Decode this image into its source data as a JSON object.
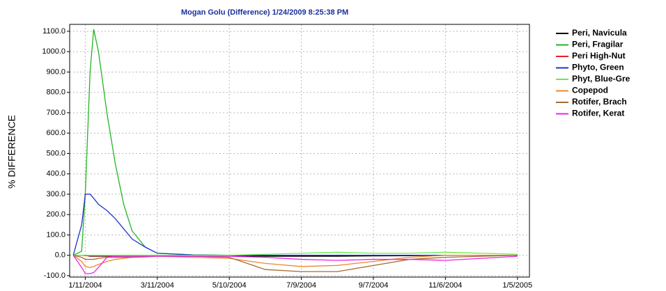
{
  "chart_data": {
    "type": "line",
    "title": "Mogan Golu (Difference)  1/24/2009 8:25:38 PM",
    "y_label": "% DIFFERENCE",
    "x": [
      "1/1/2004",
      "1/8/2004",
      "1/11/2004",
      "1/15/2004",
      "1/18/2004",
      "1/22/2004",
      "1/29/2004",
      "2/5/2004",
      "2/12/2004",
      "2/19/2004",
      "3/1/2004",
      "3/11/2004",
      "4/10/2004",
      "5/10/2004",
      "6/9/2004",
      "7/9/2004",
      "8/8/2004",
      "9/7/2004",
      "10/7/2004",
      "11/6/2004",
      "12/6/2004",
      "1/5/2005"
    ],
    "xlim": [
      "12/29/2003",
      "1/15/2005"
    ],
    "xticks": [
      "1/11/2004",
      "3/11/2004",
      "5/10/2004",
      "7/9/2004",
      "9/7/2004",
      "11/6/2004",
      "1/5/2005"
    ],
    "ylim": [
      -107,
      1134
    ],
    "yticks": [
      {
        "value": -100,
        "label": "-100.0"
      },
      {
        "value": 0,
        "label": "0.0"
      },
      {
        "value": 100,
        "label": "100.0"
      },
      {
        "value": 200,
        "label": "200.0"
      },
      {
        "value": 300,
        "label": "300.0"
      },
      {
        "value": 400,
        "label": "400.0"
      },
      {
        "value": 500,
        "label": "500.0"
      },
      {
        "value": 600,
        "label": "600.0"
      },
      {
        "value": 700,
        "label": "700.0"
      },
      {
        "value": 800,
        "label": "800.0"
      },
      {
        "value": 900,
        "label": "900.0"
      },
      {
        "value": 1000,
        "label": "1000.0"
      },
      {
        "value": 1100,
        "label": "1100.0"
      }
    ],
    "grid": true,
    "legend": "right",
    "series": [
      {
        "name": "Peri, Navicula",
        "color": "#000000",
        "values": [
          0,
          0,
          0,
          -5,
          -5,
          -5,
          -5,
          -5,
          -5,
          -5,
          -3,
          -2,
          -2,
          -3,
          -5,
          -5,
          -5,
          -3,
          -2,
          0,
          0,
          0
        ]
      },
      {
        "name": "Peri, Fragilar",
        "color": "#22b422",
        "values": [
          0,
          20,
          300,
          900,
          1110,
          1000,
          700,
          450,
          250,
          120,
          40,
          10,
          2,
          0,
          0,
          0,
          0,
          0,
          0,
          0,
          0,
          0
        ]
      },
      {
        "name": "Peri High-Nut",
        "color": "#e8202a",
        "values": [
          0,
          0,
          -2,
          -3,
          -3,
          -3,
          -3,
          -3,
          -2,
          -2,
          -2,
          -2,
          0,
          0,
          0,
          0,
          0,
          0,
          0,
          0,
          0,
          0
        ]
      },
      {
        "name": "Phyto, Green",
        "color": "#2233cc",
        "values": [
          0,
          150,
          300,
          300,
          280,
          250,
          220,
          180,
          130,
          80,
          40,
          10,
          2,
          0,
          0,
          0,
          0,
          0,
          0,
          0,
          0,
          0
        ]
      },
      {
        "name": "Phyt, Blue-Gre",
        "color": "#66ee44",
        "values": [
          0,
          0,
          0,
          0,
          0,
          0,
          0,
          0,
          0,
          0,
          0,
          0,
          0,
          0,
          5,
          10,
          15,
          10,
          10,
          15,
          10,
          5
        ]
      },
      {
        "name": "Copepod",
        "color": "#e88a2a",
        "values": [
          0,
          -30,
          -55,
          -60,
          -55,
          -45,
          -30,
          -20,
          -15,
          -10,
          -5,
          -5,
          -10,
          -15,
          -40,
          -55,
          -50,
          -30,
          -10,
          0,
          0,
          0
        ]
      },
      {
        "name": "Rotifer, Brach",
        "color": "#a86a30",
        "values": [
          0,
          -10,
          -20,
          -20,
          -20,
          -15,
          -10,
          -10,
          -10,
          -10,
          -8,
          -5,
          -5,
          -10,
          -70,
          -80,
          -80,
          -50,
          -20,
          -10,
          -5,
          0
        ]
      },
      {
        "name": "Rotifer, Kerat",
        "color": "#ee22ee",
        "values": [
          0,
          -60,
          -90,
          -90,
          -85,
          -60,
          -10,
          -5,
          -5,
          -5,
          -5,
          -5,
          -5,
          -5,
          -10,
          -20,
          -25,
          -20,
          -20,
          -25,
          -15,
          -5
        ]
      }
    ]
  }
}
